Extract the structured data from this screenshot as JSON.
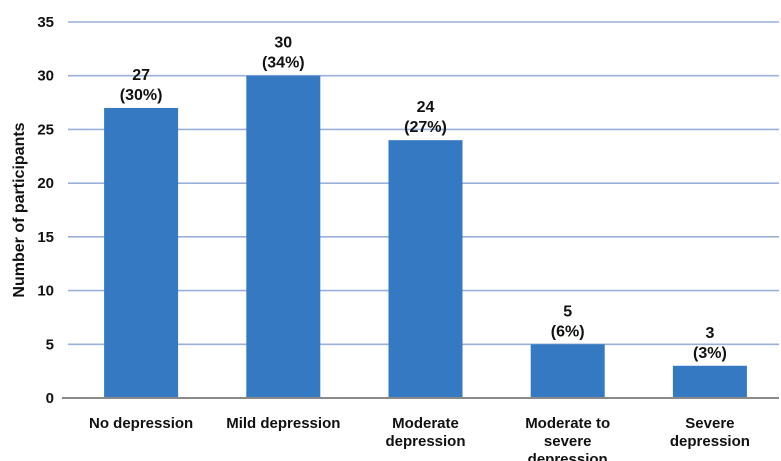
{
  "chart_data": {
    "type": "bar",
    "title": "",
    "xlabel": "",
    "ylabel": "Number of participants",
    "ylim": [
      0,
      35
    ],
    "yticks": [
      0,
      5,
      10,
      15,
      20,
      25,
      30,
      35
    ],
    "grid": true,
    "legend": "none",
    "categories": [
      "No depression",
      "Mild depression",
      "Moderate depression",
      "Moderate to severe depression",
      "Severe depression"
    ],
    "category_lines": [
      [
        "No depression"
      ],
      [
        "Mild depression"
      ],
      [
        "Moderate",
        "depression"
      ],
      [
        "Moderate to",
        "severe",
        "depression"
      ],
      [
        "Severe",
        "depression"
      ]
    ],
    "values": [
      27,
      30,
      24,
      5,
      3
    ],
    "data_labels": [
      [
        "27",
        "(30%)"
      ],
      [
        "30",
        "(34%)"
      ],
      [
        "24",
        "(27%)"
      ],
      [
        "5",
        "(6%)"
      ],
      [
        "3",
        "(3%)"
      ]
    ],
    "colors": {
      "bar": "#3579c3",
      "grid": "#9ab0d8",
      "axis": "#8a8a8a",
      "text": "#111111"
    }
  }
}
